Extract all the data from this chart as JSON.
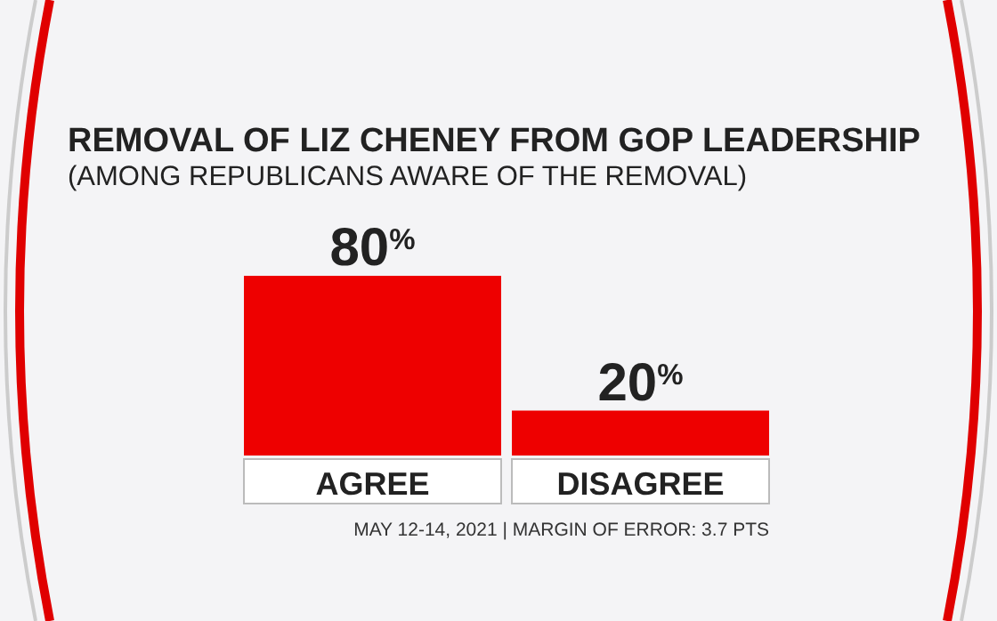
{
  "chart_data": {
    "type": "bar",
    "title": "REMOVAL OF LIZ CHENEY FROM GOP LEADERSHIP",
    "subtitle": "(AMONG REPUBLICANS AWARE OF THE REMOVAL)",
    "categories": [
      "AGREE",
      "DISAGREE"
    ],
    "values": [
      80,
      20
    ],
    "value_labels": [
      "80$^{%}$",
      "20$^{%}$"
    ],
    "color": "#ee0000",
    "annotations": [
      "MAY 12-14, 2021 | MARGIN OF ERROR: 3.7 PTS"
    ]
  }
}
